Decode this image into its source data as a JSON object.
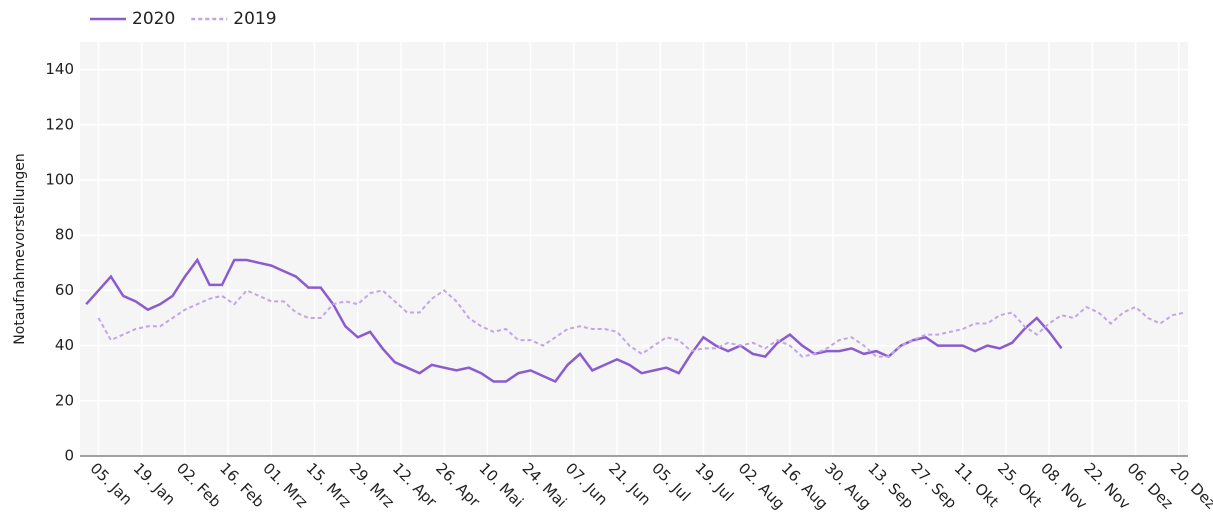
{
  "chart_data": {
    "type": "line",
    "y_label": "Notaufnahmevorstellungen",
    "x": [
      1,
      5,
      9,
      13,
      17,
      21,
      25,
      29,
      33,
      37,
      41,
      45,
      49,
      53,
      57,
      61,
      65,
      69,
      73,
      77,
      81,
      85,
      89,
      93,
      97,
      101,
      105,
      109,
      113,
      117,
      121,
      125,
      129,
      133,
      137,
      141,
      145,
      149,
      153,
      157,
      161,
      165,
      169,
      173,
      177,
      181,
      185,
      189,
      193,
      197,
      201,
      205,
      209,
      213,
      217,
      221,
      225,
      229,
      233,
      237,
      241,
      245,
      249,
      253,
      257,
      261,
      265,
      269,
      273,
      277,
      281,
      285,
      289,
      293,
      297,
      301,
      305,
      309,
      313,
      317,
      321,
      325,
      329,
      333,
      337,
      341,
      345,
      349,
      353,
      357
    ],
    "series": [
      {
        "name": "2020",
        "color": "#8a5ccf",
        "dash": false,
        "values": [
          55,
          60,
          65,
          58,
          56,
          53,
          55,
          58,
          65,
          71,
          62,
          62,
          71,
          71,
          70,
          69,
          67,
          65,
          61,
          61,
          55,
          47,
          43,
          45,
          39,
          34,
          32,
          30,
          33,
          32,
          31,
          32,
          30,
          27,
          27,
          30,
          31,
          29,
          27,
          33,
          37,
          31,
          33,
          35,
          33,
          30,
          31,
          32,
          30,
          37,
          43,
          40,
          38,
          40,
          37,
          36,
          41,
          44,
          40,
          37,
          38,
          38,
          39,
          37,
          38,
          36,
          40,
          42,
          43,
          40,
          40,
          40,
          38,
          40,
          39,
          41,
          46,
          50,
          45,
          39,
          null,
          null,
          null,
          null,
          null,
          null,
          null,
          null,
          null,
          null
        ]
      },
      {
        "name": "2019",
        "color": "#c3a5e6",
        "dash": true,
        "values": [
          null,
          50,
          42,
          44,
          46,
          47,
          47,
          50,
          53,
          55,
          57,
          58,
          55,
          60,
          58,
          56,
          56,
          52,
          50,
          50,
          55,
          56,
          55,
          59,
          60,
          56,
          52,
          52,
          57,
          60,
          56,
          50,
          47,
          45,
          46,
          42,
          42,
          40,
          43,
          46,
          47,
          46,
          46,
          45,
          40,
          37,
          40,
          43,
          42,
          38,
          39,
          39,
          41,
          40,
          41,
          39,
          42,
          40,
          36,
          37,
          39,
          42,
          43,
          40,
          36,
          36,
          40,
          42,
          44,
          44,
          45,
          46,
          48,
          48,
          51,
          52,
          47,
          44,
          48,
          51,
          50,
          54,
          52,
          48,
          52,
          54,
          50,
          48,
          51,
          52
        ]
      }
    ],
    "xlim": [
      -1,
      358
    ],
    "xticks": [
      {
        "value": 5,
        "label": "05. Jan"
      },
      {
        "value": 19,
        "label": "19. Jan"
      },
      {
        "value": 33,
        "label": "02. Feb"
      },
      {
        "value": 47,
        "label": "16. Feb"
      },
      {
        "value": 61,
        "label": "01. Mrz"
      },
      {
        "value": 75,
        "label": "15. Mrz"
      },
      {
        "value": 89,
        "label": "29. Mrz"
      },
      {
        "value": 103,
        "label": "12. Apr"
      },
      {
        "value": 117,
        "label": "26. Apr"
      },
      {
        "value": 131,
        "label": "10. Mai"
      },
      {
        "value": 145,
        "label": "24. Mai"
      },
      {
        "value": 159,
        "label": "07. Jun"
      },
      {
        "value": 173,
        "label": "21. Jun"
      },
      {
        "value": 187,
        "label": "05. Jul"
      },
      {
        "value": 201,
        "label": "19. Jul"
      },
      {
        "value": 215,
        "label": "02. Aug"
      },
      {
        "value": 229,
        "label": "16. Aug"
      },
      {
        "value": 243,
        "label": "30. Aug"
      },
      {
        "value": 257,
        "label": "13. Sep"
      },
      {
        "value": 271,
        "label": "27. Sep"
      },
      {
        "value": 285,
        "label": "11. Okt"
      },
      {
        "value": 299,
        "label": "25. Okt"
      },
      {
        "value": 313,
        "label": "08. Nov"
      },
      {
        "value": 327,
        "label": "22. Nov"
      },
      {
        "value": 341,
        "label": "06. Dez"
      },
      {
        "value": 355,
        "label": "20. Dez"
      }
    ],
    "ylim": [
      0,
      150
    ],
    "yticks": [
      0,
      20,
      40,
      60,
      80,
      100,
      120,
      140
    ],
    "grid": true
  }
}
